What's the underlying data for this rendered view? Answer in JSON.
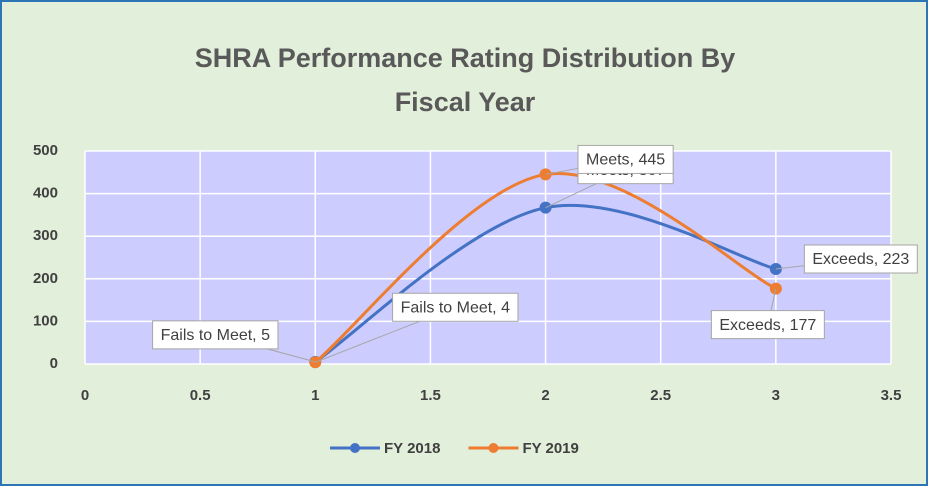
{
  "chart_data": {
    "type": "scatter-smooth",
    "title": "SHRA Performance Rating Distribution By Fiscal Year",
    "xlim": [
      0,
      3.5
    ],
    "xticks": [
      0,
      0.5,
      1,
      1.5,
      2,
      2.5,
      3,
      3.5
    ],
    "ylim": [
      0,
      500
    ],
    "yticks": [
      0,
      100,
      200,
      300,
      400,
      500
    ],
    "grid": true,
    "legend": "bottom",
    "x": [
      1,
      2,
      3
    ],
    "series": [
      {
        "name": "FY 2018",
        "color": "#4472c4",
        "values": [
          5,
          367,
          223
        ],
        "value_labels": [
          "Fails to Meet, 5",
          "Meets, 367",
          "Exceeds, 223"
        ]
      },
      {
        "name": "FY 2019",
        "color": "#ed7d31",
        "values": [
          4,
          445,
          177
        ],
        "value_labels": [
          "Fails to Meet, 4",
          "Meets, 445",
          "Exceeds, 177"
        ]
      }
    ]
  }
}
